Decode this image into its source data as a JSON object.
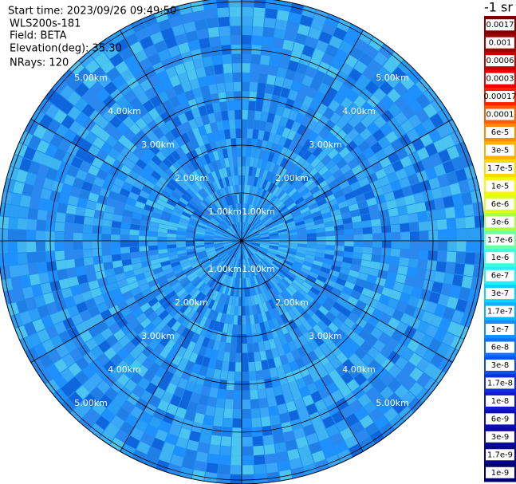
{
  "info": {
    "start_time": "Start time: 2023/09/26 09:49:50",
    "site": "WLS200s-181",
    "field": "Field: BETA",
    "elevation": "Elevation(deg): 35.30",
    "nrays": "NRays: 120"
  },
  "ring_labels": [
    "1.00km",
    "2.00km",
    "3.00km",
    "4.00km",
    "5.00km"
  ],
  "colorbar": {
    "unit": "-1 sr",
    "labels": [
      "0.0017",
      "0.001",
      "0.0006",
      "0.0003",
      "0.00017",
      "0.0001",
      "6e-5",
      "3e-5",
      "1.7e-5",
      "1e-5",
      "6e-6",
      "3e-6",
      "1.7e-6",
      "1e-6",
      "6e-7",
      "3e-7",
      "1.7e-7",
      "1e-7",
      "6e-8",
      "3e-8",
      "1.7e-8",
      "1e-8",
      "6e-9",
      "3e-9",
      "1.7e-9",
      "1e-9"
    ],
    "colors": [
      "#7f0000",
      "#a00000",
      "#c80000",
      "#e80000",
      "#ff2000",
      "#ff5a00",
      "#ff8c00",
      "#ffb000",
      "#ffd800",
      "#f8f800",
      "#d8ff20",
      "#a8ff50",
      "#70ffa0",
      "#40ffd8",
      "#20f0ff",
      "#10d0ff",
      "#10b0ff",
      "#1090ff",
      "#1070ff",
      "#1050f0",
      "#1030e0",
      "#1018d0",
      "#0c0cb8",
      "#0808a0",
      "#040488",
      "#000070"
    ]
  }
}
